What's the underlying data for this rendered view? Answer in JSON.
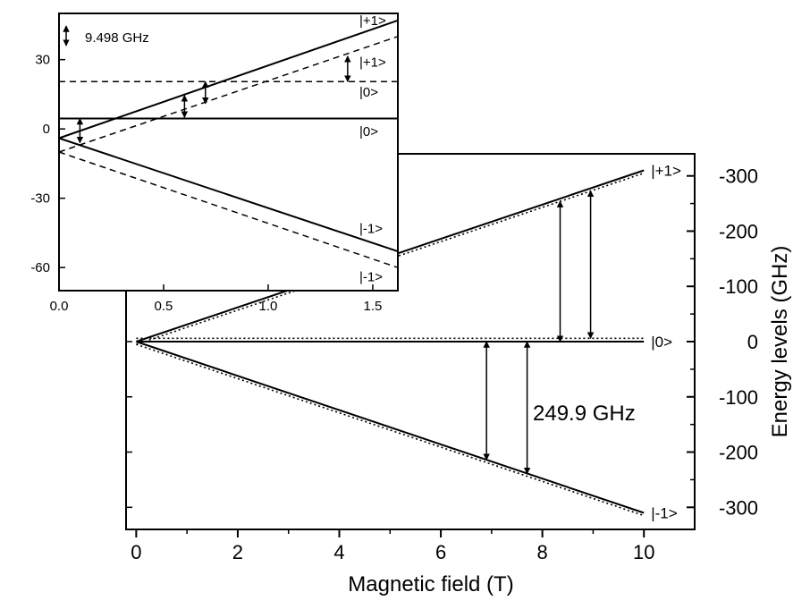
{
  "chart_data": [
    {
      "type": "line",
      "xlabel": "Magnetic field (T)",
      "ylabel": "Energy levels (GHz)",
      "xlim": [
        -0.2,
        11
      ],
      "ylim": [
        -340,
        340
      ],
      "y_axis_side": "right",
      "y_axis_inverted": true,
      "x_ticks": [
        "0",
        "2",
        "4",
        "6",
        "8",
        "10"
      ],
      "y_ticks": [
        {
          "value": -300,
          "label": "-300"
        },
        {
          "value": -200,
          "label": "-200"
        },
        {
          "value": -100,
          "label": "-100"
        },
        {
          "value": 0,
          "label": "0"
        },
        {
          "value": 100,
          "label": "-100"
        },
        {
          "value": 200,
          "label": "-200"
        },
        {
          "value": 300,
          "label": "-300"
        }
      ],
      "series": [
        {
          "style": "solid",
          "x": [
            0,
            10
          ],
          "y": [
            0,
            -310
          ]
        },
        {
          "style": "dotted",
          "x": [
            0,
            10
          ],
          "y": [
            5,
            -305
          ]
        },
        {
          "style": "solid",
          "x": [
            0,
            10
          ],
          "y": [
            0,
            0
          ]
        },
        {
          "style": "dotted",
          "x": [
            0,
            10
          ],
          "y": [
            -6,
            -6
          ]
        },
        {
          "style": "solid",
          "x": [
            0,
            10
          ],
          "y": [
            0,
            310
          ]
        },
        {
          "style": "dotted",
          "x": [
            0,
            10
          ],
          "y": [
            5,
            315
          ]
        }
      ],
      "state_labels": [
        {
          "text": "|+1>",
          "x": 10,
          "y": -310
        },
        {
          "text": "|0>",
          "x": 10,
          "y": 0
        },
        {
          "text": "|-1>",
          "x": 10,
          "y": 310
        }
      ],
      "transitions": [
        {
          "x": 8.35,
          "y_from": -254,
          "y_to": 0
        },
        {
          "x": 8.95,
          "y_from": -273,
          "y_to": -6
        },
        {
          "x": 6.9,
          "y_from": 0,
          "y_to": 214
        },
        {
          "x": 7.7,
          "y_from": 0,
          "y_to": 239
        }
      ],
      "annotation": "249.9 GHz"
    },
    {
      "type": "line",
      "inset": true,
      "xlim": [
        0,
        1.62
      ],
      "ylim": [
        -70,
        50
      ],
      "x_ticks": [
        "0.0",
        "0.5",
        "1.0",
        "1.5"
      ],
      "y_ticks": [
        {
          "value": -60,
          "label": "-60"
        },
        {
          "value": -30,
          "label": "-30"
        },
        {
          "value": 0,
          "label": "0"
        },
        {
          "value": 30,
          "label": "30"
        }
      ],
      "series": [
        {
          "style": "solid",
          "x": [
            0,
            1.62
          ],
          "y": [
            -4,
            47
          ]
        },
        {
          "style": "solid",
          "x": [
            0,
            1.62
          ],
          "y": [
            4.5,
            4.5
          ]
        },
        {
          "style": "solid",
          "x": [
            0,
            1.62
          ],
          "y": [
            -4,
            -53
          ]
        },
        {
          "style": "dashed",
          "x": [
            0,
            1.62
          ],
          "y": [
            -10,
            40
          ]
        },
        {
          "style": "dashed",
          "x": [
            0,
            1.62
          ],
          "y": [
            20.5,
            20.5
          ]
        },
        {
          "style": "dashed",
          "x": [
            0,
            1.62
          ],
          "y": [
            -10,
            -60
          ]
        }
      ],
      "state_labels": [
        {
          "text": "|+1>",
          "x": 1.62,
          "y": 47
        },
        {
          "text": "|+1>",
          "x": 1.62,
          "y": 29
        },
        {
          "text": "|0>",
          "x": 1.62,
          "y": 16
        },
        {
          "text": "|0>",
          "x": 1.62,
          "y": -1
        },
        {
          "text": "|-1>",
          "x": 1.62,
          "y": -43
        },
        {
          "text": "|-1>",
          "x": 1.62,
          "y": -64
        }
      ],
      "transitions": [
        {
          "x": 0.1,
          "y_from": -6,
          "y_to": 4.5
        },
        {
          "x": 0.6,
          "y_from": 5,
          "y_to": 14.5
        },
        {
          "x": 0.7,
          "y_from": 11,
          "y_to": 20.5
        },
        {
          "x": 1.38,
          "y_from": 20.5,
          "y_to": 31.5
        }
      ],
      "annotation": "9.498 GHz"
    }
  ]
}
